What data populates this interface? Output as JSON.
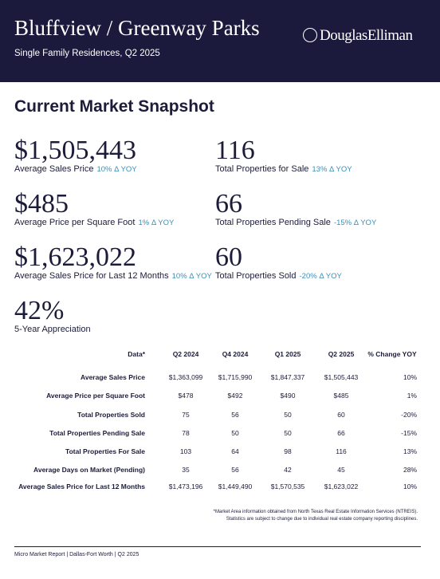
{
  "header": {
    "title": "Bluffview / Greenway Parks",
    "subtitle": "Single Family Residences, Q2 2025",
    "brand": "DouglasElliman"
  },
  "section_title": "Current Market Snapshot",
  "stats": [
    {
      "value": "$1,505,443",
      "label": "Average Sales Price",
      "change": "10% Δ YOY"
    },
    {
      "value": "116",
      "label": "Total Properties for Sale",
      "change": "13% Δ YOY"
    },
    {
      "value": "$485",
      "label": "Average Price per Square Foot",
      "change": "1% Δ YOY"
    },
    {
      "value": "66",
      "label": "Total Properties Pending Sale",
      "change": "-15% Δ YOY"
    },
    {
      "value": "$1,623,022",
      "label": "Average Sales Price for Last 12 Months",
      "change": "10% Δ YOY"
    },
    {
      "value": "60",
      "label": "Total Properties Sold",
      "change": "-20% Δ YOY"
    },
    {
      "value": "42%",
      "label": "5-Year Appreciation"
    }
  ],
  "table": {
    "header": [
      "Data*",
      "Q2 2024",
      "Q4 2024",
      "Q1 2025",
      "Q2 2025",
      "% Change YOY"
    ],
    "rows": [
      [
        "Average Sales Price",
        "$1,363,099",
        "$1,715,990",
        "$1,847,337",
        "$1,505,443",
        "10%"
      ],
      [
        "Average Price per Square Foot",
        "$478",
        "$492",
        "$490",
        "$485",
        "1%"
      ],
      [
        "Total Properties Sold",
        "75",
        "56",
        "50",
        "60",
        "-20%"
      ],
      [
        "Total Properties Pending Sale",
        "78",
        "50",
        "50",
        "66",
        "-15%"
      ],
      [
        "Total Properties For Sale",
        "103",
        "64",
        "98",
        "116",
        "13%"
      ],
      [
        "Average Days on Market (Pending)",
        "35",
        "56",
        "42",
        "45",
        "28%"
      ],
      [
        "Average Sales Price for Last 12 Months",
        "$1,473,196",
        "$1,449,490",
        "$1,570,535",
        "$1,623,022",
        "10%"
      ]
    ]
  },
  "footnote": [
    "*Market Area information obtained from North Texas Real Estate Information Services (NTREIS).",
    "Statistics are subject to change due to individual real estate company reporting disciplines."
  ],
  "footer": "Micro Market Report | Dallas-Fort Worth | Q2 2025"
}
